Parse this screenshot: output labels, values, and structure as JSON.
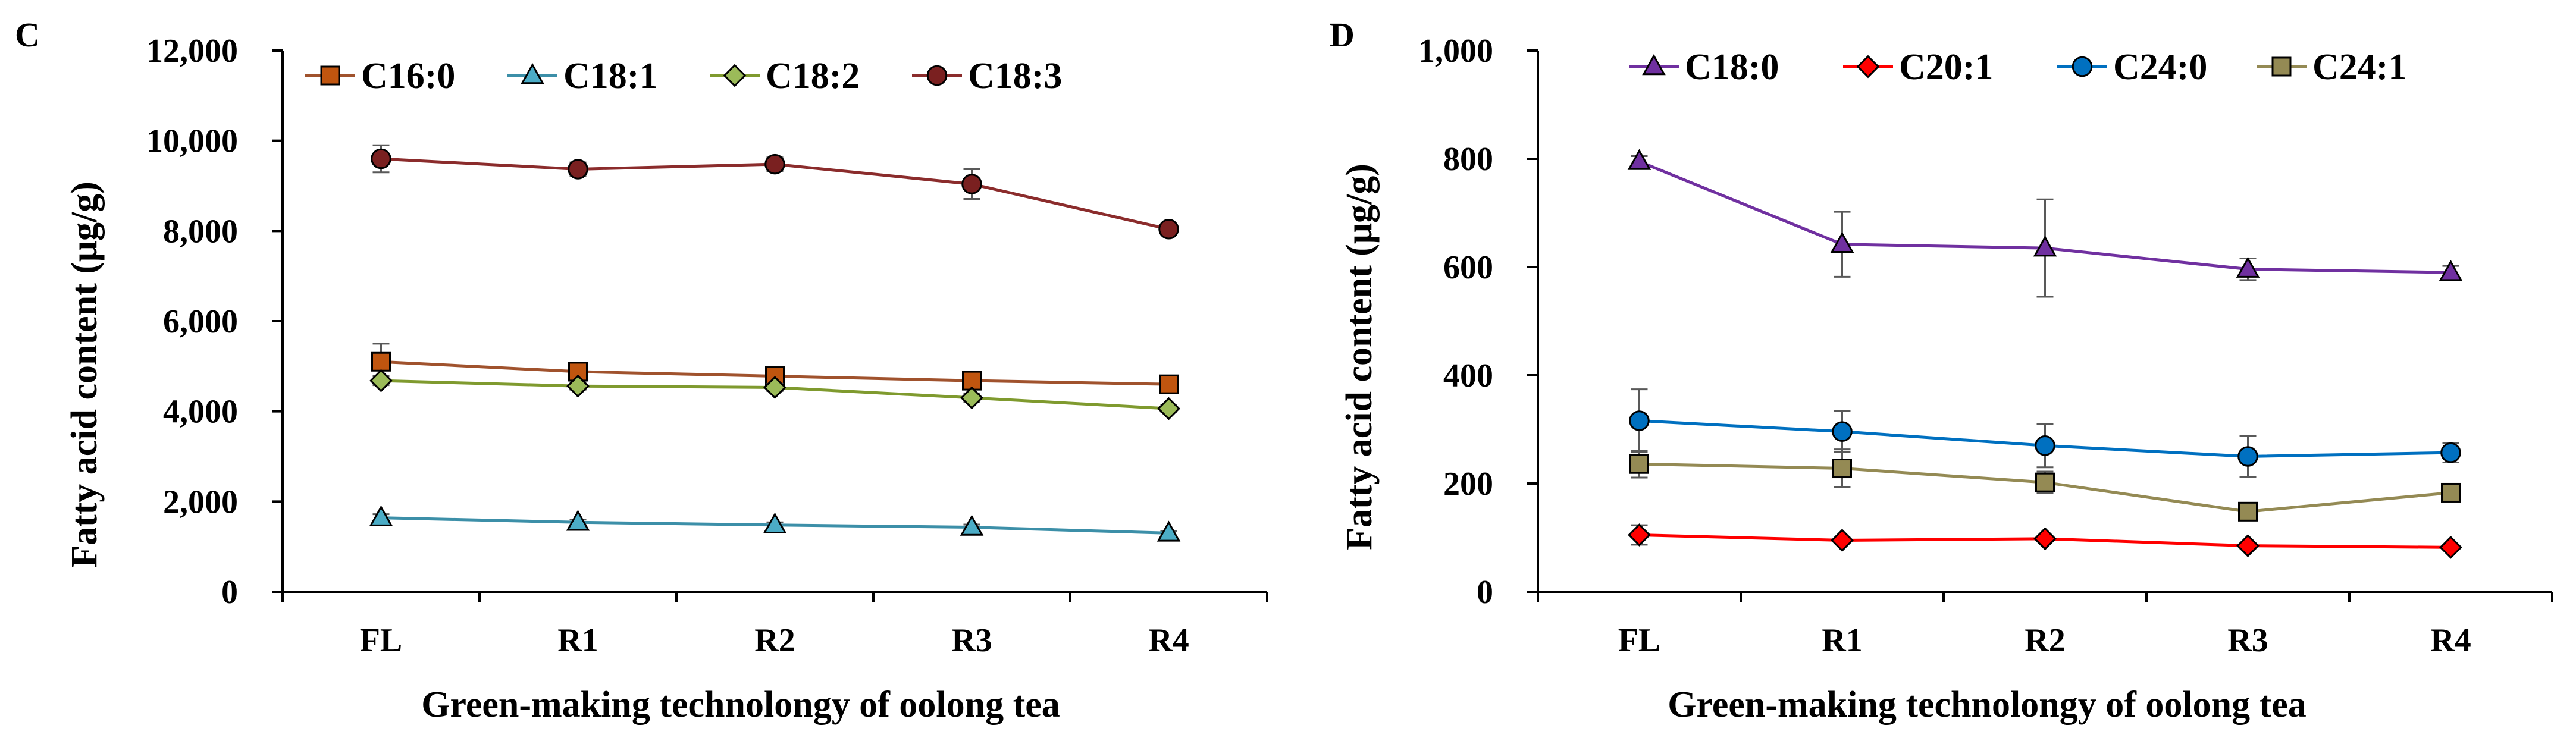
{
  "chart_data": [
    {
      "panel": "C",
      "type": "line",
      "categories": [
        "FL",
        "R1",
        "R2",
        "R3",
        "R4"
      ],
      "xlabel": "Green-making technolongy of oolong tea",
      "ylabel": "Fatty acid content (μg/g)",
      "ylim": [
        0,
        12000
      ],
      "yticks": [
        0,
        2000,
        4000,
        6000,
        8000,
        10000,
        12000
      ],
      "ytick_labels": [
        "0",
        "2,000",
        "4,000",
        "6,000",
        "8,000",
        "10,000",
        "12,000"
      ],
      "legend_position": "top",
      "series": [
        {
          "name": "C16:0",
          "color": "#a0522d",
          "marker": "square",
          "fill": "#c0550f",
          "values": [
            5100,
            4880,
            4780,
            4680,
            4600
          ],
          "errors": [
            400,
            120,
            100,
            100,
            80
          ]
        },
        {
          "name": "C18:1",
          "color": "#3c8fa8",
          "marker": "triangle",
          "fill": "#4bacc6",
          "values": [
            1640,
            1540,
            1480,
            1430,
            1300
          ],
          "errors": [
            80,
            60,
            60,
            60,
            50
          ]
        },
        {
          "name": "C18:2",
          "color": "#7f9a2e",
          "marker": "diamond",
          "fill": "#9bbb59",
          "values": [
            4680,
            4560,
            4530,
            4300,
            4060
          ],
          "errors": [
            100,
            80,
            80,
            100,
            80
          ]
        },
        {
          "name": "C18:3",
          "color": "#8b2c2c",
          "marker": "circle",
          "fill": "#7a2020",
          "values": [
            9600,
            9370,
            9480,
            9040,
            8040
          ],
          "errors": [
            300,
            150,
            150,
            330,
            120
          ]
        }
      ]
    },
    {
      "panel": "D",
      "type": "line",
      "categories": [
        "FL",
        "R1",
        "R2",
        "R3",
        "R4"
      ],
      "xlabel": "Green-making technolongy of oolong tea",
      "ylabel": "Fatty acid content (μg/g)",
      "ylim": [
        0,
        1000
      ],
      "yticks": [
        0,
        200,
        400,
        600,
        800,
        1000
      ],
      "ytick_labels": [
        "0",
        "200",
        "400",
        "600",
        "800",
        "1,000"
      ],
      "legend_position": "top",
      "series": [
        {
          "name": "C18:0",
          "color": "#7030a0",
          "marker": "triangle",
          "fill": "#7030a0",
          "values": [
            795,
            642,
            635,
            596,
            590
          ],
          "errors": [
            10,
            60,
            90,
            20,
            12
          ]
        },
        {
          "name": "C20:1",
          "color": "#ff0000",
          "marker": "diamond",
          "fill": "#ff0000",
          "values": [
            105,
            95,
            98,
            85,
            82
          ],
          "errors": [
            18,
            5,
            5,
            5,
            5
          ]
        },
        {
          "name": "C24:0",
          "color": "#0070c0",
          "marker": "circle",
          "fill": "#0070c0",
          "values": [
            316,
            296,
            270,
            250,
            257
          ],
          "errors": [
            58,
            38,
            40,
            38,
            18
          ]
        },
        {
          "name": "C24:1",
          "color": "#948a54",
          "marker": "square",
          "fill": "#948a54",
          "values": [
            236,
            228,
            202,
            148,
            183
          ],
          "errors": [
            25,
            35,
            20,
            12,
            12
          ]
        }
      ]
    }
  ]
}
